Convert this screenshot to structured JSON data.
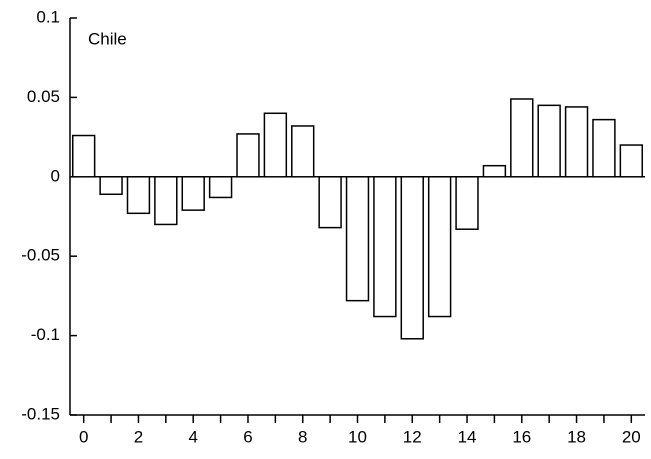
{
  "chart_data": {
    "type": "bar",
    "annotation": "Chile",
    "x": [
      0,
      1,
      2,
      3,
      4,
      5,
      6,
      7,
      8,
      9,
      10,
      11,
      12,
      13,
      14,
      15,
      16,
      17,
      18,
      19,
      20
    ],
    "values": [
      0.026,
      -0.011,
      -0.023,
      -0.03,
      -0.021,
      -0.013,
      0.027,
      0.04,
      0.032,
      -0.032,
      -0.078,
      -0.088,
      -0.102,
      -0.088,
      -0.033,
      0.007,
      0.049,
      0.045,
      0.044,
      0.036,
      0.02
    ],
    "color": "#ffffff",
    "xlim": [
      -0.5,
      20.5
    ],
    "xticks": [
      0,
      2,
      4,
      6,
      8,
      10,
      12,
      14,
      16,
      18,
      20
    ],
    "ylim": [
      -0.15,
      0.1
    ],
    "yticks": [
      0.1,
      0.05,
      0,
      -0.05,
      -0.1,
      -0.15
    ],
    "grid": false
  }
}
